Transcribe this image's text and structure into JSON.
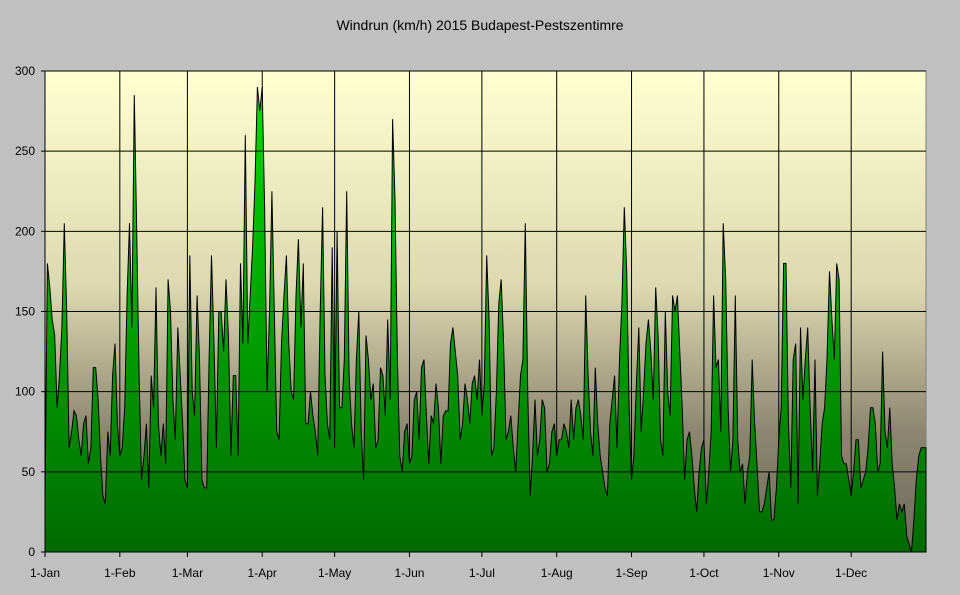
{
  "chart_data": {
    "type": "area",
    "title": "Windrun (km/h) 2015 Budapest-Pestszentimre",
    "xlabel": "",
    "ylabel": "",
    "ylim": [
      0,
      300
    ],
    "yticks": [
      0,
      50,
      100,
      150,
      200,
      250,
      300
    ],
    "xtick_labels": [
      "1-Jan",
      "1-Feb",
      "1-Mar",
      "1-Apr",
      "1-May",
      "1-Jun",
      "1-Jul",
      "1-Aug",
      "1-Sep",
      "1-Oct",
      "1-Nov",
      "1-Dec"
    ],
    "grid": true,
    "legend": "none",
    "fill_top_color": "#00dd00",
    "fill_bottom_color": "#006a00",
    "series": [
      {
        "name": "Windrun",
        "monthly_daily_values": [
          [
            30,
            180,
            165,
            145,
            135,
            90,
            110,
            140,
            205,
            150,
            65,
            75,
            88,
            85,
            70,
            60,
            80,
            85,
            55,
            65,
            115,
            115,
            95,
            60,
            35,
            30,
            75,
            60,
            110,
            130,
            80
          ],
          [
            60,
            65,
            90,
            160,
            205,
            140,
            285,
            200,
            110,
            45,
            60,
            80,
            40,
            110,
            90,
            165,
            80,
            60,
            80,
            55,
            170,
            150,
            95,
            70,
            140,
            110,
            80,
            45
          ],
          [
            40,
            185,
            100,
            85,
            160,
            120,
            45,
            40,
            40,
            120,
            185,
            130,
            65,
            150,
            150,
            125,
            170,
            135,
            60,
            110,
            110,
            60,
            180,
            130,
            260,
            130,
            160,
            190,
            230,
            290,
            275
          ],
          [
            290,
            215,
            100,
            150,
            225,
            150,
            75,
            70,
            130,
            160,
            185,
            130,
            100,
            95,
            160,
            195,
            140,
            180,
            80,
            80,
            100,
            85,
            75,
            60,
            150,
            215,
            110,
            80,
            70,
            190
          ],
          [
            65,
            200,
            90,
            90,
            120,
            225,
            110,
            80,
            65,
            120,
            150,
            75,
            45,
            135,
            120,
            95,
            105,
            65,
            70,
            115,
            110,
            85,
            145,
            95,
            270,
            220,
            120,
            60,
            50,
            75,
            80
          ],
          [
            55,
            60,
            95,
            100,
            70,
            115,
            120,
            85,
            55,
            85,
            80,
            105,
            90,
            55,
            85,
            88,
            88,
            130,
            140,
            125,
            110,
            70,
            80,
            105,
            95,
            80,
            105,
            110,
            95,
            120
          ],
          [
            85,
            105,
            185,
            145,
            60,
            65,
            100,
            155,
            170,
            130,
            70,
            75,
            85,
            65,
            50,
            80,
            110,
            120,
            205,
            100,
            35,
            60,
            95,
            60,
            70,
            95,
            90,
            50,
            55,
            75,
            80
          ],
          [
            60,
            70,
            70,
            80,
            75,
            65,
            95,
            70,
            90,
            95,
            85,
            70,
            160,
            110,
            75,
            60,
            115,
            80,
            60,
            50,
            40,
            35,
            80,
            95,
            110,
            65,
            120,
            155,
            215,
            175,
            90
          ],
          [
            45,
            60,
            105,
            140,
            75,
            100,
            130,
            145,
            125,
            95,
            165,
            135,
            70,
            60,
            150,
            100,
            85,
            160,
            150,
            160,
            125,
            90,
            45,
            70,
            75,
            60,
            40,
            25,
            50,
            65
          ],
          [
            70,
            30,
            50,
            75,
            160,
            115,
            120,
            75,
            205,
            170,
            90,
            50,
            70,
            160,
            70,
            50,
            55,
            30,
            50,
            60,
            120,
            80,
            55,
            25,
            25,
            30,
            40,
            50,
            20,
            20,
            40
          ],
          [
            70,
            90,
            180,
            180,
            80,
            40,
            120,
            130,
            30,
            140,
            95,
            120,
            140,
            90,
            50,
            120,
            35,
            55,
            80,
            90,
            120,
            175,
            145,
            120,
            180,
            170,
            60,
            55,
            55,
            45
          ],
          [
            35,
            50,
            70,
            70,
            40,
            45,
            50,
            65,
            90,
            90,
            80,
            50,
            55,
            125,
            75,
            65,
            90,
            55,
            40,
            20,
            30,
            25,
            30,
            10,
            5,
            0,
            20,
            45,
            60,
            65,
            65
          ]
        ]
      }
    ]
  }
}
